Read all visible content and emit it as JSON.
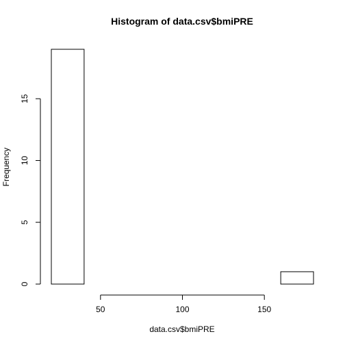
{
  "chart_data": {
    "type": "bar",
    "title": "Histogram of data.csv$bmiPRE",
    "xlabel": "data.csv$bmiPRE",
    "ylabel": "Frequency",
    "bins": [
      {
        "from": 20,
        "to": 40,
        "count": 19
      },
      {
        "from": 40,
        "to": 60,
        "count": 0
      },
      {
        "from": 60,
        "to": 80,
        "count": 0
      },
      {
        "from": 80,
        "to": 100,
        "count": 0
      },
      {
        "from": 100,
        "to": 120,
        "count": 0
      },
      {
        "from": 120,
        "to": 140,
        "count": 0
      },
      {
        "from": 140,
        "to": 160,
        "count": 0
      },
      {
        "from": 160,
        "to": 180,
        "count": 1
      }
    ],
    "xlim": [
      20,
      180
    ],
    "ylim": [
      0,
      19
    ],
    "x_ticks": [
      50,
      100,
      150
    ],
    "y_ticks": [
      0,
      5,
      10,
      15
    ],
    "grid": false,
    "legend": "none"
  }
}
